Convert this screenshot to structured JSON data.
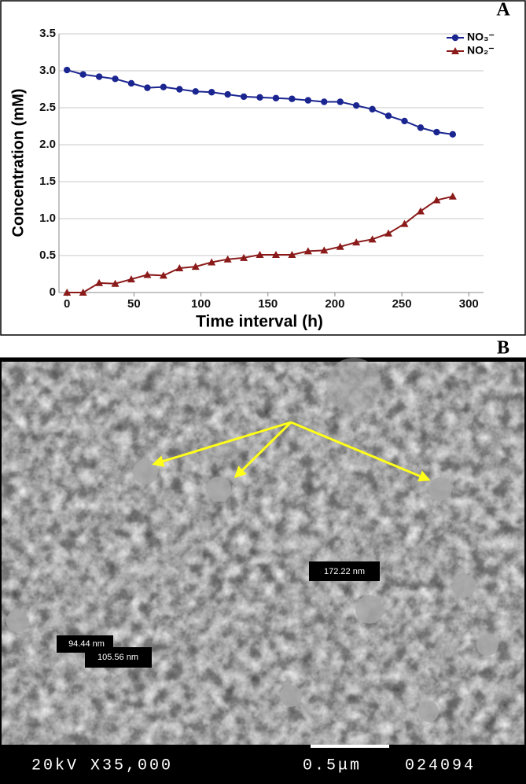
{
  "chart_data": {
    "type": "line",
    "panel_label": "A",
    "y_label": "Concentration (mM)",
    "x_label": "Time interval (h)",
    "x": [
      0,
      12,
      24,
      36,
      48,
      60,
      72,
      84,
      96,
      108,
      120,
      132,
      144,
      156,
      168,
      180,
      192,
      204,
      216,
      228,
      240,
      252,
      264,
      276,
      288
    ],
    "series": [
      {
        "name": "NO₃⁻",
        "color": "#1a2590",
        "marker": "circle",
        "values": [
          3.01,
          2.95,
          2.92,
          2.89,
          2.83,
          2.77,
          2.78,
          2.75,
          2.72,
          2.71,
          2.68,
          2.65,
          2.64,
          2.63,
          2.62,
          2.6,
          2.58,
          2.58,
          2.53,
          2.48,
          2.39,
          2.32,
          2.23,
          2.17,
          2.14
        ]
      },
      {
        "name": "NO₂⁻",
        "color": "#8b1a1a",
        "marker": "triangle",
        "values": [
          0,
          0,
          0.13,
          0.12,
          0.18,
          0.24,
          0.23,
          0.33,
          0.35,
          0.41,
          0.45,
          0.47,
          0.51,
          0.51,
          0.51,
          0.56,
          0.57,
          0.62,
          0.68,
          0.72,
          0.8,
          0.93,
          1.1,
          1.25,
          1.3
        ]
      }
    ],
    "xlim": [
      -6,
      311
    ],
    "xticks": [
      0,
      50,
      100,
      150,
      200,
      250,
      300
    ],
    "ylim": [
      0,
      3.5
    ],
    "yticks": [
      0,
      0.5,
      {
        "value": 1,
        "label": "1.0"
      },
      1.5,
      {
        "value": 2,
        "label": "2.0"
      },
      2.5,
      {
        "value": 3,
        "label": "3.0"
      },
      3.5
    ],
    "grid": true,
    "legend": "top-right"
  },
  "image": {
    "panel_label": "B",
    "measurements": [
      "172.22 nm",
      "94.44 nm",
      "105.56 nm"
    ],
    "footer": [
      "20kV X35,000",
      "0.5μm",
      "024094"
    ]
  }
}
